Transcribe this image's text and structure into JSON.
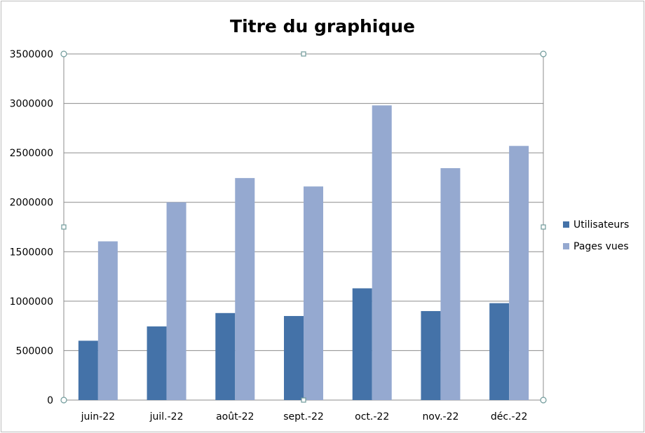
{
  "chart_data": {
    "type": "bar",
    "title": "Titre du graphique",
    "xlabel": "",
    "ylabel": "",
    "categories": [
      "juin-22",
      "juil.-22",
      "août-22",
      "sept.-22",
      "oct.-22",
      "nov.-22",
      "déc.-22"
    ],
    "series": [
      {
        "name": "Utilisateurs",
        "color": "#4472a8",
        "values": [
          600000,
          745000,
          880000,
          850000,
          1130000,
          900000,
          980000
        ]
      },
      {
        "name": "Pages vues",
        "color": "#95a9d0",
        "values": [
          1605000,
          2000000,
          2245000,
          2160000,
          2980000,
          2345000,
          2570000
        ]
      }
    ],
    "ylim": [
      0,
      3500000
    ],
    "yticks": [
      "0",
      "500000",
      "1000000",
      "1500000",
      "2000000",
      "2500000",
      "3000000",
      "3500000"
    ],
    "grid": true,
    "legend_position": "right"
  }
}
